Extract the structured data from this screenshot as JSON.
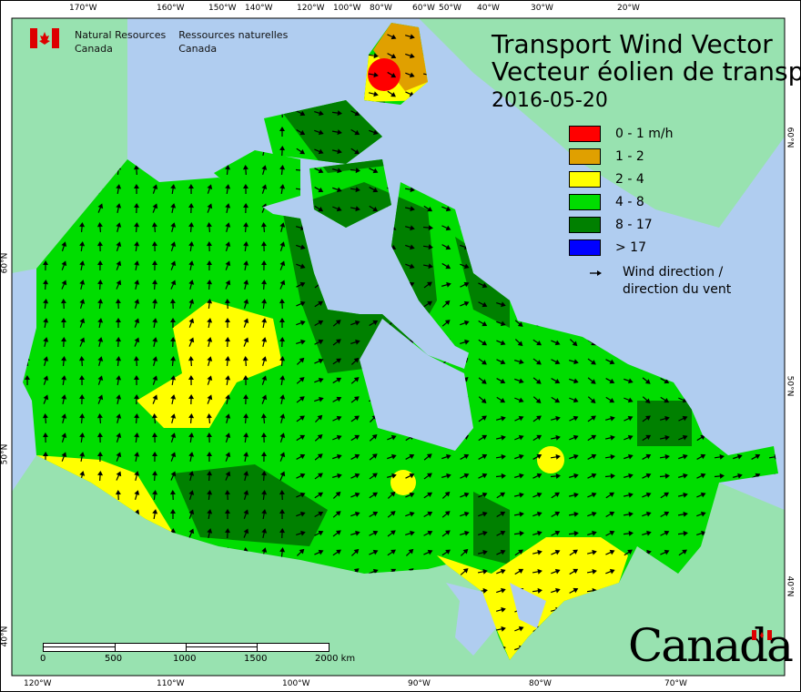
{
  "logo": {
    "en_line1": "Natural Resources",
    "en_line2": "Canada",
    "fr_line1": "Ressources naturelles",
    "fr_line2": "Canada"
  },
  "title": {
    "en": "Transport Wind Vector",
    "fr": "Vecteur éolien de transp",
    "date": "2016-05-20"
  },
  "legend": {
    "items": [
      {
        "label": "0 - 1 m/h",
        "color": "#ff0000"
      },
      {
        "label": "1 - 2",
        "color": "#e0a000"
      },
      {
        "label": "2 - 4",
        "color": "#ffff00"
      },
      {
        "label": "4 - 8",
        "color": "#00dd00"
      },
      {
        "label": "8 - 17",
        "color": "#008000"
      },
      {
        "label": "> 17",
        "color": "#0000ff"
      }
    ],
    "wind_line1": "Wind direction /",
    "wind_line2": "direction du vent"
  },
  "axes": {
    "top": [
      "170°W",
      "160°W",
      "150°W",
      "140°W",
      "120°W",
      "100°W",
      "80°W",
      "60°W",
      "50°W",
      "40°W",
      "30°W",
      "20°W"
    ],
    "bottom": [
      "120°W",
      "110°W",
      "100°W",
      "90°W",
      "80°W",
      "70°W"
    ],
    "left": [
      "60°N",
      "50°N",
      "40°N"
    ],
    "right": [
      "60°N",
      "50°N",
      "40°N"
    ]
  },
  "scalebar": {
    "labels": [
      "0",
      "500",
      "1000",
      "1500",
      "2000 km"
    ]
  },
  "wordmark": "Canada",
  "colors": {
    "ocean": "#b0cdf0",
    "foreign_land": "#98e2b0"
  }
}
